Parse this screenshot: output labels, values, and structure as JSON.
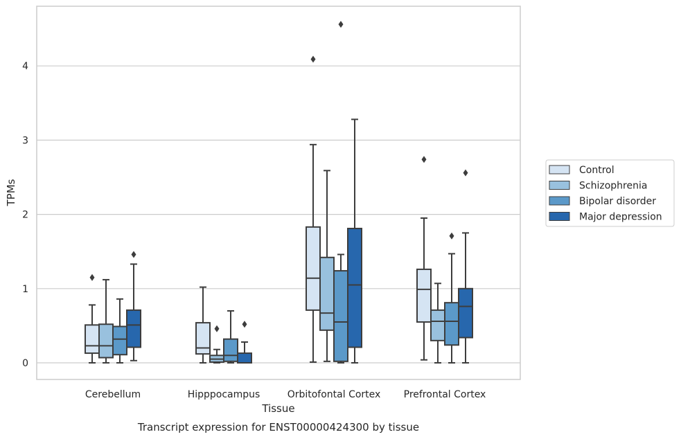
{
  "caption": "Transcript expression for ENST00000424300 by tissue",
  "chart_data": {
    "type": "boxplot",
    "xlabel": "Tissue",
    "ylabel": "TPMs",
    "ylim": [
      -0.22,
      4.8
    ],
    "yticks": [
      0,
      1,
      2,
      3,
      4
    ],
    "grid": "horizontal",
    "legend_position": "right",
    "categories": [
      "Cerebellum",
      "Hipppocampus",
      "Orbitofontal Cortex",
      "Prefrontal Cortex"
    ],
    "series": [
      {
        "name": "Control",
        "color": "#d5e4f3",
        "boxes": [
          {
            "whisker_low": 0.0,
            "q1": 0.13,
            "median": 0.23,
            "q3": 0.51,
            "whisker_high": 0.78,
            "outliers": [
              1.15
            ]
          },
          {
            "whisker_low": 0.0,
            "q1": 0.12,
            "median": 0.2,
            "q3": 0.54,
            "whisker_high": 1.02,
            "outliers": []
          },
          {
            "whisker_low": 0.01,
            "q1": 0.71,
            "median": 1.14,
            "q3": 1.83,
            "whisker_high": 2.94,
            "outliers": [
              4.09
            ]
          },
          {
            "whisker_low": 0.04,
            "q1": 0.55,
            "median": 0.99,
            "q3": 1.26,
            "whisker_high": 1.95,
            "outliers": [
              2.74
            ]
          }
        ]
      },
      {
        "name": "Schizophrenia",
        "color": "#99c1de",
        "boxes": [
          {
            "whisker_low": 0.0,
            "q1": 0.07,
            "median": 0.23,
            "q3": 0.52,
            "whisker_high": 1.12,
            "outliers": []
          },
          {
            "whisker_low": 0.0,
            "q1": 0.01,
            "median": 0.05,
            "q3": 0.1,
            "whisker_high": 0.18,
            "outliers": [
              0.46
            ]
          },
          {
            "whisker_low": 0.02,
            "q1": 0.44,
            "median": 0.67,
            "q3": 1.42,
            "whisker_high": 2.59,
            "outliers": []
          },
          {
            "whisker_low": 0.0,
            "q1": 0.3,
            "median": 0.56,
            "q3": 0.71,
            "whisker_high": 1.07,
            "outliers": []
          }
        ]
      },
      {
        "name": "Bipolar disorder",
        "color": "#5b99c9",
        "boxes": [
          {
            "whisker_low": 0.0,
            "q1": 0.11,
            "median": 0.32,
            "q3": 0.49,
            "whisker_high": 0.86,
            "outliers": []
          },
          {
            "whisker_low": 0.0,
            "q1": 0.02,
            "median": 0.1,
            "q3": 0.32,
            "whisker_high": 0.7,
            "outliers": []
          },
          {
            "whisker_low": 0.0,
            "q1": 0.02,
            "median": 0.55,
            "q3": 1.24,
            "whisker_high": 1.46,
            "outliers": [
              4.56
            ]
          },
          {
            "whisker_low": 0.0,
            "q1": 0.24,
            "median": 0.56,
            "q3": 0.81,
            "whisker_high": 1.47,
            "outliers": [
              1.71
            ]
          }
        ]
      },
      {
        "name": "Major depression",
        "color": "#2767ad",
        "boxes": [
          {
            "whisker_low": 0.03,
            "q1": 0.21,
            "median": 0.51,
            "q3": 0.71,
            "whisker_high": 1.33,
            "outliers": [
              1.46
            ]
          },
          {
            "whisker_low": 0.0,
            "q1": 0.0,
            "median": 0.0,
            "q3": 0.13,
            "whisker_high": 0.28,
            "outliers": [
              0.52
            ]
          },
          {
            "whisker_low": 0.0,
            "q1": 0.21,
            "median": 1.05,
            "q3": 1.81,
            "whisker_high": 3.28,
            "outliers": []
          },
          {
            "whisker_low": 0.0,
            "q1": 0.34,
            "median": 0.76,
            "q3": 1.0,
            "whisker_high": 1.75,
            "outliers": [
              2.56
            ]
          }
        ]
      }
    ]
  }
}
